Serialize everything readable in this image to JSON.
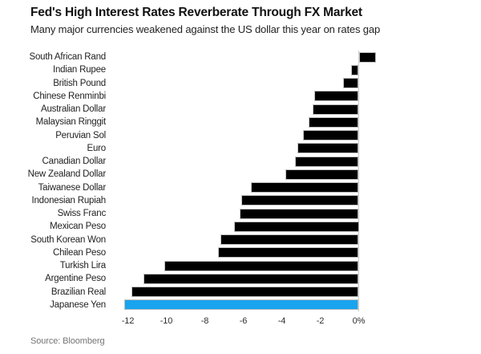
{
  "chart_data": {
    "type": "bar",
    "orientation": "horizontal",
    "title": "Fed's High Interest Rates Reverberate Through FX Market",
    "subtitle": "Many major currencies weakened against the US dollar this year on rates gap",
    "source": "Source: Bloomberg",
    "unit": "%",
    "categories": [
      "South African Rand",
      "Indian Rupee",
      "British Pound",
      "Chinese Renminbi",
      "Australian Dollar",
      "Malaysian Ringgit",
      "Peruvian Sol",
      "Euro",
      "Canadian Dollar",
      "New Zealand Dollar",
      "Taiwanese Dollar",
      "Indonesian Rupiah",
      "Swiss Franc",
      "Mexican Peso",
      "South Korean Won",
      "Chilean Peso",
      "Turkish Lira",
      "Argentine Peso",
      "Brazilian Real",
      "Japanese Yen"
    ],
    "values": [
      0.9,
      -0.4,
      -0.8,
      -2.3,
      -2.4,
      -2.6,
      -2.9,
      -3.2,
      -3.3,
      -3.8,
      -5.6,
      -6.1,
      -6.2,
      -6.5,
      -7.2,
      -7.3,
      -10.1,
      -11.2,
      -11.8,
      -12.2
    ],
    "xlim": [
      -13,
      1.5
    ],
    "tick_values": [
      -12,
      -10,
      -8,
      -6,
      -4,
      -2,
      0
    ],
    "tick_labels": [
      "-12",
      "-10",
      "-8",
      "-6",
      "-4",
      "-2",
      "0%"
    ],
    "highlight_category": "Japanese Yen",
    "grid": "off",
    "legend": "none",
    "zero_line": true,
    "colors": {
      "bar": "#000000",
      "highlight": "#18a4ee",
      "bar_edge": "#bdbdbd",
      "zero_line": "#cccccc",
      "title_text": "#111111",
      "axis_text": "#2e2e2e",
      "source_text": "#757575"
    }
  }
}
